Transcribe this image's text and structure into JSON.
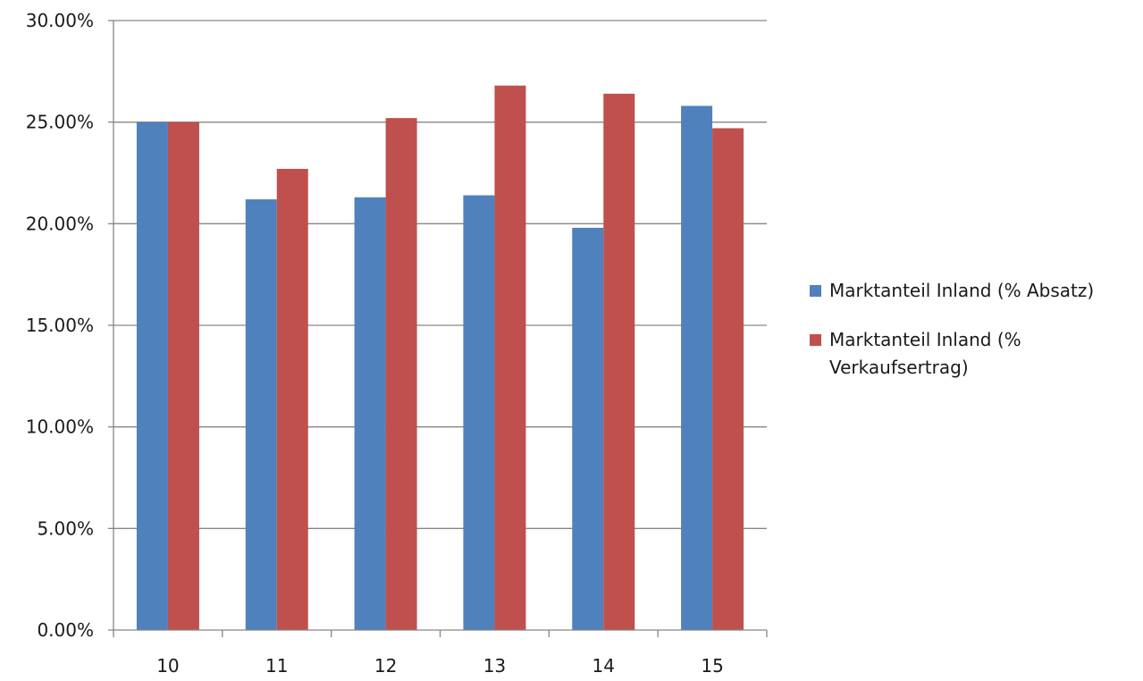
{
  "chart_data": {
    "type": "bar",
    "categories": [
      "10",
      "11",
      "12",
      "13",
      "14",
      "15"
    ],
    "series": [
      {
        "name": "Marktanteil Inland (% Absatz)",
        "color": "#4f81bd",
        "values": [
          25.0,
          21.2,
          21.3,
          21.4,
          19.8,
          25.8
        ]
      },
      {
        "name": "Marktanteil Inland (% Verkaufsertrag)",
        "color": "#c0504d",
        "values": [
          25.0,
          22.7,
          25.2,
          26.8,
          26.4,
          24.7
        ]
      }
    ],
    "y_ticks": [
      "0.00%",
      "5.00%",
      "10.00%",
      "15.00%",
      "20.00%",
      "25.00%",
      "30.00%"
    ],
    "ylim": [
      0,
      30
    ],
    "grid": true,
    "legend_position": "right",
    "gridline_color": "#868686",
    "axis_color": "#868686"
  }
}
